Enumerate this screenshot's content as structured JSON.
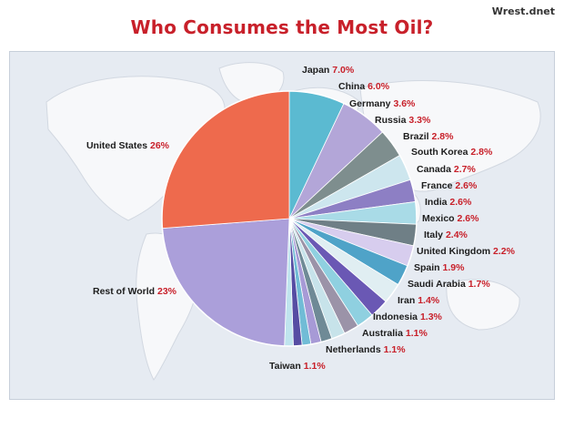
{
  "watermark": "Wrest.dnet",
  "title": "Who Consumes the Most Oil?",
  "chart_data": {
    "type": "pie",
    "title": "Who Consumes the Most Oil?",
    "unit": "%",
    "slices": [
      {
        "name": "Japan",
        "value": 7.0,
        "label": "7.0%",
        "color": "#5bbad1"
      },
      {
        "name": "China",
        "value": 6.0,
        "label": "6.0%",
        "color": "#b3a6d8"
      },
      {
        "name": "Germany",
        "value": 3.6,
        "label": "3.6%",
        "color": "#7e8e8e"
      },
      {
        "name": "Russia",
        "value": 3.3,
        "label": "3.3%",
        "color": "#cde6ee"
      },
      {
        "name": "Brazil",
        "value": 2.8,
        "label": "2.8%",
        "color": "#8d7fc4"
      },
      {
        "name": "South Korea",
        "value": 2.8,
        "label": "2.8%",
        "color": "#a9dbe7"
      },
      {
        "name": "Canada",
        "value": 2.7,
        "label": "2.7%",
        "color": "#6f7f86"
      },
      {
        "name": "France",
        "value": 2.6,
        "label": "2.6%",
        "color": "#d7cdee"
      },
      {
        "name": "India",
        "value": 2.6,
        "label": "2.6%",
        "color": "#4fa3c8"
      },
      {
        "name": "Mexico",
        "value": 2.6,
        "label": "2.6%",
        "color": "#e0eef2"
      },
      {
        "name": "Italy",
        "value": 2.4,
        "label": "2.4%",
        "color": "#6a58b4"
      },
      {
        "name": "United Kingdom",
        "value": 2.2,
        "label": "2.2%",
        "color": "#8fd0e0"
      },
      {
        "name": "Spain",
        "value": 1.9,
        "label": "1.9%",
        "color": "#9b93a8"
      },
      {
        "name": "Saudi Arabia",
        "value": 1.7,
        "label": "1.7%",
        "color": "#c7e3ea"
      },
      {
        "name": "Iran",
        "value": 1.4,
        "label": "1.4%",
        "color": "#6f8a96"
      },
      {
        "name": "Indonesia",
        "value": 1.3,
        "label": "1.3%",
        "color": "#a79ad6"
      },
      {
        "name": "Australia",
        "value": 1.1,
        "label": "1.1%",
        "color": "#71bcd6"
      },
      {
        "name": "Netherlands",
        "value": 1.1,
        "label": "1.1%",
        "color": "#564da3"
      },
      {
        "name": "Taiwan",
        "value": 1.1,
        "label": "1.1%",
        "color": "#bfe4ee"
      },
      {
        "name": "Rest of World",
        "value": 23,
        "label": "23%",
        "color": "#ab9fda"
      },
      {
        "name": "United States",
        "value": 26,
        "label": "26%",
        "color": "#ee6a4d"
      }
    ]
  }
}
